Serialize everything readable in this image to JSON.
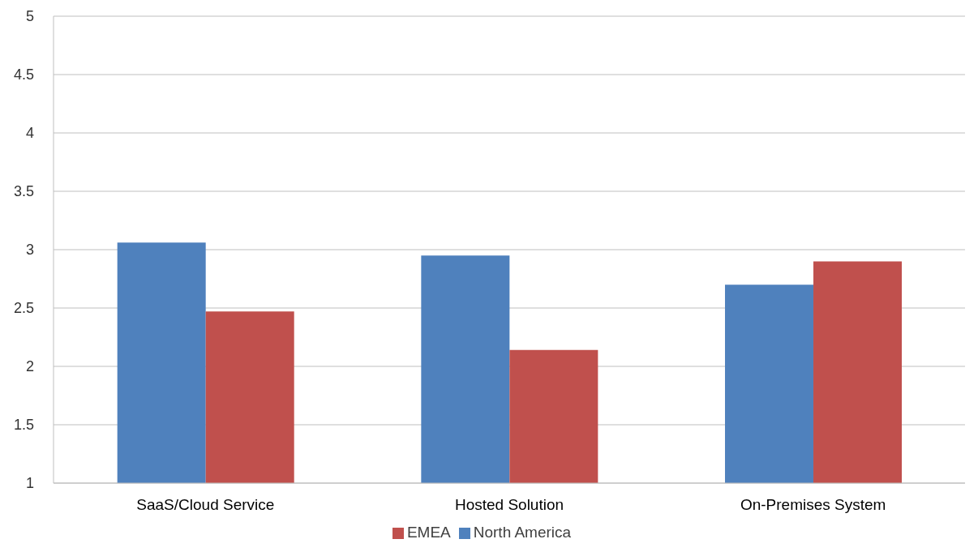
{
  "chart_data": {
    "type": "bar",
    "categories": [
      "SaaS/Cloud Service",
      "Hosted Solution",
      "On-Premises System"
    ],
    "series": [
      {
        "name": "North America",
        "color": "#4f81bd",
        "values": [
          3.06,
          2.95,
          2.7
        ]
      },
      {
        "name": "EMEA",
        "color": "#c0504d",
        "values": [
          2.47,
          2.14,
          2.9
        ]
      }
    ],
    "ylim": [
      1,
      5
    ],
    "yticks": [
      1,
      1.5,
      2,
      2.5,
      3,
      3.5,
      4,
      4.5,
      5
    ],
    "grid": "y",
    "legend": "bottom"
  }
}
